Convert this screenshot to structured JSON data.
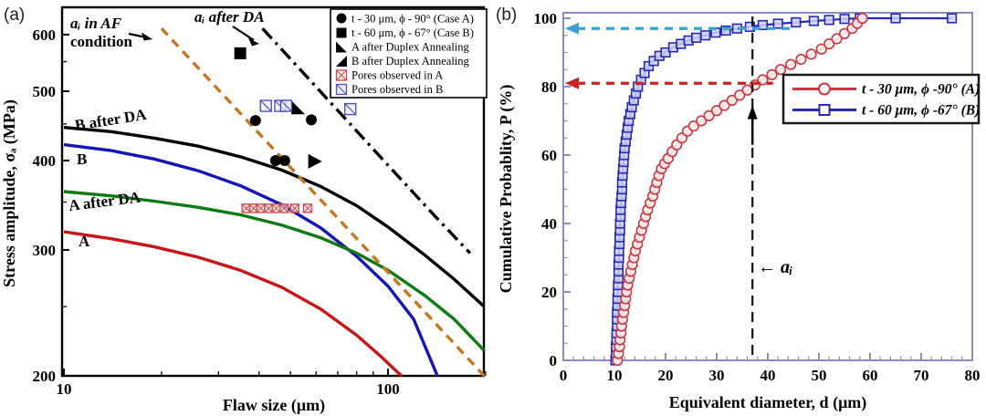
{
  "colors": {
    "curve_A": "#cc1414",
    "curve_B": "#1414bb",
    "curve_A_DA": "#0e7a12",
    "curve_B_DA": "#000000",
    "ai_af_line": "#c8761e",
    "ai_da_line": "#000000",
    "pores_A": "#cc4a4a",
    "pores_B": "#5050c0",
    "b_series_A": "#cc3840",
    "b_series_B": "#2828b8",
    "b_frame": "#8c8cc4",
    "blue_arrow": "#3b9fd4",
    "red_arrow": "#cc2222"
  },
  "chart_data": [
    {
      "panel": "(a)",
      "type": "line",
      "x_axis": {
        "label": "Flaw size (μm)",
        "scale": "log",
        "min": 10,
        "max": 200,
        "major_ticks": [
          10,
          100
        ],
        "minor_ticks": [
          20,
          30,
          40,
          50,
          60,
          70,
          80,
          90,
          200
        ]
      },
      "y_axis": {
        "label": "Stress amplitude, σₐ (MPa)",
        "scale": "log",
        "min": 200,
        "max": 620,
        "major_ticks": [
          200,
          300,
          400,
          500,
          600
        ],
        "minor_ticks": [
          250,
          350,
          450,
          550
        ]
      },
      "series": [
        {
          "name": "A",
          "color": "#cc1414",
          "style": "solid",
          "points": [
            [
              10,
              318
            ],
            [
              14,
              311
            ],
            [
              19,
              303
            ],
            [
              26,
              293
            ],
            [
              35,
              281
            ],
            [
              47,
              266
            ],
            [
              62,
              248
            ],
            [
              80,
              228
            ],
            [
              95,
              213
            ],
            [
              110,
              200
            ]
          ]
        },
        {
          "name": "B",
          "color": "#1414bb",
          "style": "solid",
          "points": [
            [
              10,
              421
            ],
            [
              14,
              413
            ],
            [
              19,
              402
            ],
            [
              26,
              387
            ],
            [
              35,
              369
            ],
            [
              47,
              347
            ],
            [
              62,
              322
            ],
            [
              80,
              294
            ],
            [
              100,
              267
            ],
            [
              120,
              240
            ],
            [
              142,
              200
            ]
          ]
        },
        {
          "name": "A after DA",
          "color": "#0e7a12",
          "style": "solid",
          "points": [
            [
              10,
              362
            ],
            [
              14,
              357
            ],
            [
              19,
              351
            ],
            [
              26,
              344
            ],
            [
              35,
              336
            ],
            [
              47,
              325
            ],
            [
              62,
              312
            ],
            [
              80,
              297
            ],
            [
              100,
              281
            ],
            [
              130,
              259
            ],
            [
              160,
              240
            ],
            [
              198,
              217
            ]
          ]
        },
        {
          "name": "B after DA",
          "color": "#000000",
          "style": "solid",
          "points": [
            [
              10,
              445
            ],
            [
              14,
              439
            ],
            [
              19,
              430
            ],
            [
              26,
              419
            ],
            [
              35,
              405
            ],
            [
              47,
              388
            ],
            [
              62,
              368
            ],
            [
              80,
              346
            ],
            [
              100,
              323
            ],
            [
              130,
              295
            ],
            [
              160,
              273
            ],
            [
              198,
              250
            ]
          ]
        },
        {
          "name": "aᵢ in AF condition",
          "color": "#c8761e",
          "style": "dashed",
          "points": [
            [
              20,
              612
            ],
            [
              200,
              199
            ]
          ]
        },
        {
          "name": "aᵢ after DA",
          "color": "#000000",
          "style": "dashdot",
          "points": [
            [
              41,
              612
            ],
            [
              70,
              470
            ],
            [
              100,
              394
            ],
            [
              140,
              334
            ],
            [
              179,
              297
            ]
          ]
        }
      ],
      "markers": [
        {
          "type": "filled-circle",
          "legend": "t - 30 μm, ϕ - 90° (Case A)",
          "color": "#000000",
          "points": [
            [
              39,
              455
            ],
            [
              58,
              456
            ],
            [
              45,
              400
            ],
            [
              48,
              400
            ]
          ]
        },
        {
          "type": "filled-square",
          "legend": "t - 60 μm, ϕ - 67° (Case B)",
          "color": "#000000",
          "points": [
            [
              35,
              565
            ]
          ]
        },
        {
          "type": "triangle-a",
          "legend": "A after Duplex Annealing",
          "color": "#000000",
          "points": [
            [
              53,
              474
            ]
          ]
        },
        {
          "type": "triangle-b",
          "legend": "B after Duplex Annealing",
          "color": "#000000",
          "points": [
            [
              59,
              399
            ]
          ]
        },
        {
          "type": "crossed-square",
          "legend": "Pores observed in A",
          "color": "#cc4a4a",
          "points": [
            [
              36.5,
              343
            ],
            [
              38.5,
              343
            ],
            [
              40.5,
              343
            ],
            [
              42.8,
              343
            ],
            [
              45.2,
              343
            ],
            [
              47.8,
              343
            ],
            [
              51.5,
              343
            ],
            [
              56.5,
              343
            ]
          ]
        },
        {
          "type": "diag-square",
          "legend": "Pores observed in B",
          "color": "#5050c0",
          "points": [
            [
              42,
              477
            ],
            [
              46.5,
              477
            ],
            [
              48.5,
              477
            ],
            [
              76.5,
              472
            ]
          ]
        }
      ],
      "legend": [
        {
          "label": "t - 30 μm, ϕ - 90° (Case A)",
          "color": "#000000"
        },
        {
          "label": "t - 60 μm, ϕ - 67° (Case B)",
          "color": "#000000"
        },
        {
          "label": "A after Duplex Annealing",
          "color": "#000000"
        },
        {
          "label": "B after Duplex Annealing",
          "color": "#000000"
        },
        {
          "label": "Pores observed in A",
          "color": "#cc2222"
        },
        {
          "label": "Pores observed in B",
          "color": "#3344bb"
        }
      ],
      "annotations": {
        "af_line1": "aᵢ in AF",
        "af_line2": "condition",
        "da": "aᵢ after DA",
        "curveB_DA": "B after DA",
        "curveB": "B",
        "curveA_DA": "A after DA",
        "curveA": "A"
      }
    },
    {
      "panel": "(b)",
      "type": "scatter",
      "x_axis": {
        "label": "Equivalent diameter, d (μm)",
        "scale": "linear",
        "min": 0,
        "max": 80,
        "major_tick_step": 10,
        "minor_tick_step": 2
      },
      "y_axis": {
        "label": "Cumulative Probablity, P (%)",
        "scale": "linear",
        "min": 0,
        "max": 100,
        "major_tick_step": 20,
        "minor_tick_step": 5
      },
      "series": [
        {
          "name": "t - 30 μm, ϕ -90° (A)",
          "color": "#cc3840",
          "marker": "circle",
          "points": [
            [
              10.6,
              0
            ],
            [
              10.8,
              2
            ],
            [
              11.0,
              4
            ],
            [
              11.1,
              6
            ],
            [
              11.3,
              8
            ],
            [
              11.4,
              10
            ],
            [
              11.6,
              12
            ],
            [
              11.8,
              14
            ],
            [
              12.0,
              16
            ],
            [
              12.2,
              18
            ],
            [
              12.4,
              20
            ],
            [
              12.6,
              22
            ],
            [
              12.9,
              24
            ],
            [
              13.2,
              26
            ],
            [
              13.5,
              28
            ],
            [
              13.8,
              30
            ],
            [
              14.1,
              32
            ],
            [
              14.5,
              34
            ],
            [
              14.9,
              36
            ],
            [
              15.3,
              38
            ],
            [
              15.7,
              40
            ],
            [
              16.1,
              42
            ],
            [
              16.5,
              44
            ],
            [
              17.0,
              46
            ],
            [
              17.5,
              48
            ],
            [
              17.9,
              50
            ],
            [
              18.3,
              52
            ],
            [
              18.7,
              54
            ],
            [
              19.2,
              56
            ],
            [
              19.8,
              57.5
            ],
            [
              20.5,
              59
            ],
            [
              21.3,
              61
            ],
            [
              22.2,
              63
            ],
            [
              23.2,
              65
            ],
            [
              24.3,
              67
            ],
            [
              25.5,
              68.5
            ],
            [
              27.0,
              70
            ],
            [
              28.5,
              71.5
            ],
            [
              30.0,
              73
            ],
            [
              31.5,
              74.5
            ],
            [
              33.0,
              76
            ],
            [
              34.5,
              77.5
            ],
            [
              36.0,
              79
            ],
            [
              37.5,
              80.5
            ],
            [
              39.0,
              82
            ],
            [
              40.8,
              83.5
            ],
            [
              42.5,
              85
            ],
            [
              44.5,
              86.5
            ],
            [
              46.5,
              88
            ],
            [
              48.5,
              89.5
            ],
            [
              50.5,
              91
            ],
            [
              52.0,
              92.5
            ],
            [
              53.5,
              94
            ],
            [
              55.0,
              95.5
            ],
            [
              56.5,
              97
            ],
            [
              57.5,
              98.5
            ],
            [
              58.5,
              100
            ]
          ]
        },
        {
          "name": "t - 60 μm, ϕ -67° (B)",
          "color": "#2828b8",
          "marker": "square",
          "points": [
            [
              10.2,
              0
            ],
            [
              10.3,
              2
            ],
            [
              10.3,
              4
            ],
            [
              10.4,
              6
            ],
            [
              10.4,
              8
            ],
            [
              10.5,
              10
            ],
            [
              10.5,
              12
            ],
            [
              10.5,
              14
            ],
            [
              10.6,
              16
            ],
            [
              10.6,
              18
            ],
            [
              10.7,
              20
            ],
            [
              10.7,
              22
            ],
            [
              10.8,
              24
            ],
            [
              10.8,
              26
            ],
            [
              10.8,
              28
            ],
            [
              10.9,
              30
            ],
            [
              10.9,
              32
            ],
            [
              11.0,
              34
            ],
            [
              11.0,
              36
            ],
            [
              11.1,
              38
            ],
            [
              11.1,
              40
            ],
            [
              11.2,
              42
            ],
            [
              11.2,
              44
            ],
            [
              11.3,
              46
            ],
            [
              11.4,
              48
            ],
            [
              11.5,
              50
            ],
            [
              11.5,
              52
            ],
            [
              11.6,
              54
            ],
            [
              11.7,
              56
            ],
            [
              11.8,
              58
            ],
            [
              11.9,
              60
            ],
            [
              12.0,
              62
            ],
            [
              12.2,
              64
            ],
            [
              12.4,
              66
            ],
            [
              12.6,
              68
            ],
            [
              12.8,
              70
            ],
            [
              13.1,
              72
            ],
            [
              13.4,
              74
            ],
            [
              13.8,
              76
            ],
            [
              14.2,
              78
            ],
            [
              14.6,
              80
            ],
            [
              15.2,
              82
            ],
            [
              15.9,
              84
            ],
            [
              16.7,
              86
            ],
            [
              17.7,
              87.5
            ],
            [
              18.8,
              89
            ],
            [
              20.0,
              90
            ],
            [
              21.5,
              91.5
            ],
            [
              23.0,
              92.5
            ],
            [
              24.5,
              93.5
            ],
            [
              26.0,
              94.3
            ],
            [
              27.8,
              95
            ],
            [
              29.8,
              95.8
            ],
            [
              31.8,
              96.4
            ],
            [
              34.0,
              97
            ],
            [
              36.5,
              97.5
            ],
            [
              39.0,
              98
            ],
            [
              42.0,
              98.4
            ],
            [
              45.5,
              98.8
            ],
            [
              49.0,
              99.2
            ],
            [
              52.0,
              99.5
            ],
            [
              55.0,
              99.8
            ],
            [
              58.0,
              100
            ],
            [
              65.0,
              100
            ],
            [
              76.0,
              100
            ]
          ]
        }
      ],
      "annotations": {
        "ai_line_x": 37,
        "ai_label": "← aᵢ",
        "blue_arrow_P": 97,
        "red_arrow_P": 81
      }
    }
  ]
}
